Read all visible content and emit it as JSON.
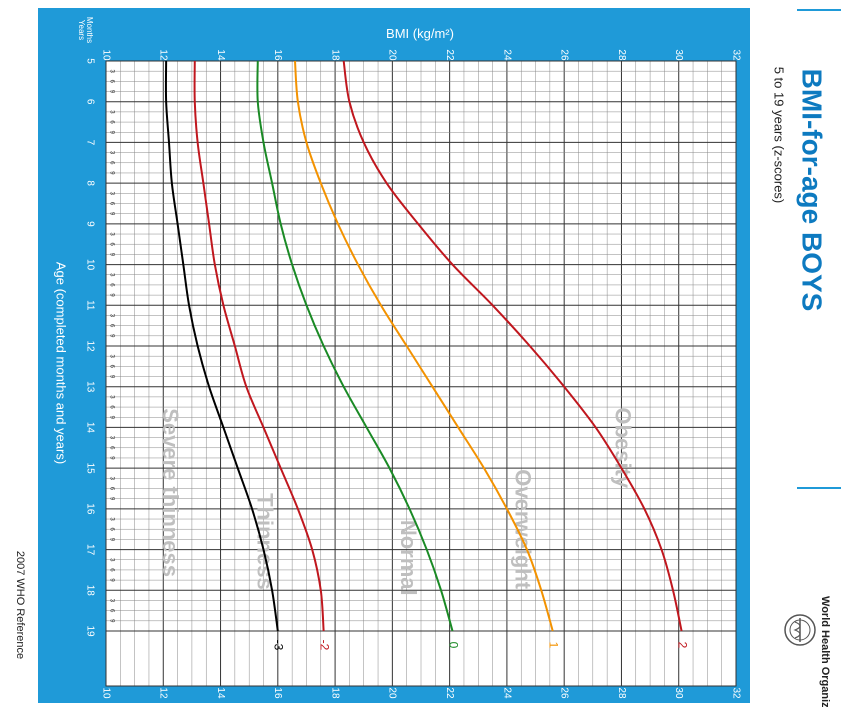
{
  "header": {
    "title": "BMI-for-age  BOYS",
    "subtitle": "5 to 19 years (z-scores)"
  },
  "logo": {
    "name": "World Health Organization",
    "icon": "who-emblem-icon"
  },
  "footer": {
    "reference": "2007  WHO Reference"
  },
  "colors": {
    "frame": "#1f9ad8",
    "grid": "#555555",
    "title": "#0d7ac0",
    "zone_text": "#bfbfbf",
    "z_neg3": "#000000",
    "z_neg2": "#c0171e",
    "z_0": "#1a8a25",
    "z_1": "#f39200",
    "z_2": "#c0171e"
  },
  "chart_data": {
    "type": "line",
    "title": "BMI-for-age  BOYS",
    "subtitle": "5 to 19 years (z-scores)",
    "xlabel": "Age (completed months and years)",
    "ylabel": "BMI (kg/m²)",
    "axis_units_label": [
      "Months",
      "Years"
    ],
    "month_ticks": [
      "3",
      "6",
      "9"
    ],
    "xlim": [
      5,
      19
    ],
    "ylim": [
      10,
      32
    ],
    "x_ticks": [
      "5",
      "6",
      "7",
      "8",
      "9",
      "10",
      "11",
      "12",
      "13",
      "14",
      "15",
      "16",
      "17",
      "18",
      "19"
    ],
    "y_ticks": [
      "10",
      "12",
      "14",
      "16",
      "18",
      "20",
      "22",
      "24",
      "26",
      "28",
      "30",
      "32"
    ],
    "grid": true,
    "x": [
      5,
      6,
      7,
      8,
      9,
      10,
      11,
      12,
      13,
      14,
      15,
      16,
      17,
      18,
      19
    ],
    "series": [
      {
        "name": "2",
        "color": "#c0171e",
        "values": [
          18.3,
          18.5,
          19.0,
          19.8,
          20.9,
          22.1,
          23.5,
          24.8,
          26.0,
          27.1,
          28.0,
          28.8,
          29.4,
          29.8,
          30.1
        ]
      },
      {
        "name": "1",
        "color": "#f39200",
        "values": [
          16.6,
          16.7,
          17.0,
          17.5,
          18.1,
          18.8,
          19.6,
          20.5,
          21.4,
          22.3,
          23.2,
          24.0,
          24.7,
          25.2,
          25.6
        ]
      },
      {
        "name": "0",
        "color": "#1a8a25",
        "values": [
          15.3,
          15.3,
          15.5,
          15.8,
          16.1,
          16.5,
          17.0,
          17.6,
          18.3,
          19.1,
          19.9,
          20.6,
          21.2,
          21.7,
          22.1
        ]
      },
      {
        "name": "-2",
        "color": "#c0171e",
        "values": [
          13.1,
          13.1,
          13.2,
          13.4,
          13.6,
          13.8,
          14.1,
          14.5,
          14.9,
          15.5,
          16.1,
          16.7,
          17.2,
          17.5,
          17.6
        ]
      },
      {
        "name": "-3",
        "color": "#000000",
        "values": [
          12.1,
          12.1,
          12.2,
          12.3,
          12.5,
          12.7,
          12.9,
          13.2,
          13.6,
          14.1,
          14.6,
          15.1,
          15.5,
          15.8,
          16.0
        ]
      }
    ],
    "zones": [
      {
        "name": "Obesity",
        "x": 14.5,
        "y": 28.0
      },
      {
        "name": "Overweight",
        "x": 16.5,
        "y": 24.5
      },
      {
        "name": "Normal",
        "x": 17.2,
        "y": 20.5
      },
      {
        "name": "Thinness",
        "x": 16.8,
        "y": 15.5
      },
      {
        "name": "Severe thinness",
        "x": 15.6,
        "y": 12.2
      }
    ]
  }
}
